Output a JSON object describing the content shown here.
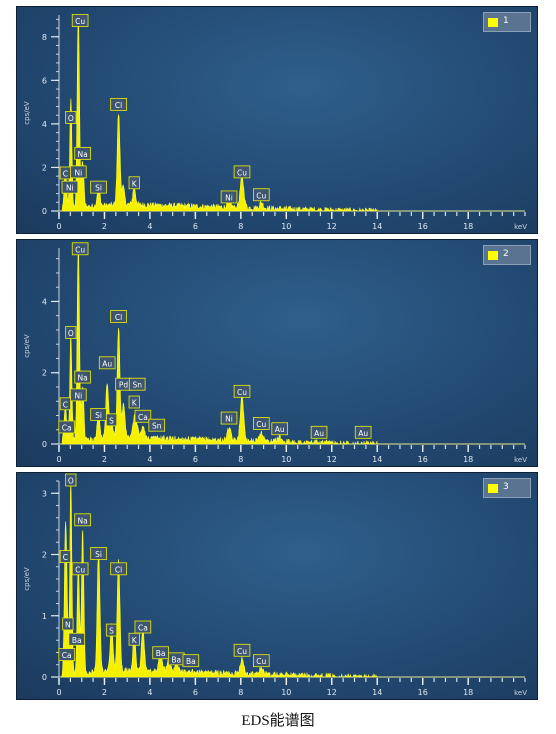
{
  "caption": "EDS能谱图",
  "chart_data": [
    {
      "type": "line",
      "legend": "1",
      "ylabel": "cps/eV",
      "xlabel": "keV",
      "xlim": [
        0,
        20.5
      ],
      "ylim": [
        0,
        9
      ],
      "xticks": [
        0,
        2,
        4,
        6,
        8,
        10,
        12,
        14,
        16,
        18
      ],
      "yticks": [
        0,
        2,
        4,
        6,
        8
      ],
      "peaks": [
        [
          0.28,
          1.7,
          0.05
        ],
        [
          0.52,
          5.1,
          0.045
        ],
        [
          0.85,
          9.0,
          0.05
        ],
        [
          1.04,
          2.1,
          0.05
        ],
        [
          1.74,
          0.95,
          0.06
        ],
        [
          2.62,
          4.2,
          0.06
        ],
        [
          2.82,
          0.8,
          0.06
        ],
        [
          3.31,
          0.8,
          0.06
        ],
        [
          7.48,
          0.35,
          0.07
        ],
        [
          8.05,
          1.4,
          0.08
        ],
        [
          8.9,
          0.25,
          0.08
        ]
      ],
      "labels": [
        {
          "text": "Cu",
          "x": 0.93,
          "y": 8.7
        },
        {
          "text": "O",
          "x": 0.52,
          "y": 4.25
        },
        {
          "text": "Na",
          "x": 1.04,
          "y": 2.6
        },
        {
          "text": "C",
          "x": 0.28,
          "y": 1.7
        },
        {
          "text": "Ni",
          "x": 0.85,
          "y": 1.75
        },
        {
          "text": "Ni",
          "x": 0.48,
          "y": 1.05
        },
        {
          "text": "Si",
          "x": 1.74,
          "y": 1.05
        },
        {
          "text": "Cl",
          "x": 2.62,
          "y": 4.85
        },
        {
          "text": "K",
          "x": 3.31,
          "y": 1.25
        },
        {
          "text": "Cu",
          "x": 8.05,
          "y": 1.75
        },
        {
          "text": "Ni",
          "x": 7.48,
          "y": 0.6
        },
        {
          "text": "Cu",
          "x": 8.9,
          "y": 0.7
        }
      ]
    },
    {
      "type": "line",
      "legend": "2",
      "ylabel": "cps/eV",
      "xlabel": "keV",
      "xlim": [
        0,
        20.5
      ],
      "ylim": [
        0,
        5.5
      ],
      "xticks": [
        0,
        2,
        4,
        6,
        8,
        10,
        12,
        14,
        16,
        18
      ],
      "yticks": [
        0,
        2,
        4
      ],
      "peaks": [
        [
          0.28,
          1.0,
          0.05
        ],
        [
          0.52,
          3.0,
          0.045
        ],
        [
          0.85,
          5.5,
          0.05
        ],
        [
          1.04,
          1.5,
          0.05
        ],
        [
          1.74,
          0.75,
          0.06
        ],
        [
          2.12,
          1.6,
          0.06
        ],
        [
          2.31,
          0.45,
          0.06
        ],
        [
          2.62,
          3.1,
          0.06
        ],
        [
          2.84,
          0.95,
          0.06
        ],
        [
          3.31,
          0.55,
          0.06
        ],
        [
          3.69,
          0.35,
          0.06
        ],
        [
          3.44,
          0.3,
          0.06
        ],
        [
          7.48,
          0.35,
          0.07
        ],
        [
          8.05,
          1.2,
          0.08
        ],
        [
          8.9,
          0.25,
          0.08
        ],
        [
          9.71,
          0.15,
          0.08
        ]
      ],
      "labels": [
        {
          "text": "Cu",
          "x": 0.93,
          "y": 5.45
        },
        {
          "text": "O",
          "x": 0.52,
          "y": 3.1
        },
        {
          "text": "Cl",
          "x": 2.62,
          "y": 3.55
        },
        {
          "text": "Au",
          "x": 2.12,
          "y": 2.25
        },
        {
          "text": "Na",
          "x": 1.04,
          "y": 1.85
        },
        {
          "text": "Pd",
          "x": 2.84,
          "y": 1.65
        },
        {
          "text": "Sn",
          "x": 3.44,
          "y": 1.65
        },
        {
          "text": "Ni",
          "x": 0.85,
          "y": 1.35
        },
        {
          "text": "C",
          "x": 0.28,
          "y": 1.1
        },
        {
          "text": "K",
          "x": 3.31,
          "y": 1.15
        },
        {
          "text": "Si",
          "x": 1.74,
          "y": 0.8
        },
        {
          "text": "S",
          "x": 2.31,
          "y": 0.65
        },
        {
          "text": "Ca",
          "x": 3.69,
          "y": 0.75
        },
        {
          "text": "Ca",
          "x": 0.34,
          "y": 0.45
        },
        {
          "text": "Sn",
          "x": 4.3,
          "y": 0.5
        },
        {
          "text": "Cu",
          "x": 8.05,
          "y": 1.45
        },
        {
          "text": "Ni",
          "x": 7.48,
          "y": 0.7
        },
        {
          "text": "Cu",
          "x": 8.9,
          "y": 0.55
        },
        {
          "text": "Au",
          "x": 9.71,
          "y": 0.4
        },
        {
          "text": "Au",
          "x": 11.44,
          "y": 0.3
        },
        {
          "text": "Au",
          "x": 13.38,
          "y": 0.3
        }
      ]
    },
    {
      "type": "line",
      "legend": "3",
      "ylabel": "cps/eV",
      "xlabel": "keV",
      "xlim": [
        0,
        20.5
      ],
      "ylim": [
        0,
        3.2
      ],
      "xticks": [
        0,
        2,
        4,
        6,
        8,
        10,
        12,
        14,
        16,
        18
      ],
      "yticks": [
        0,
        1,
        2,
        3
      ],
      "peaks": [
        [
          0.28,
          2.0,
          0.05
        ],
        [
          0.34,
          0.9,
          0.05
        ],
        [
          0.52,
          3.2,
          0.045
        ],
        [
          0.85,
          1.75,
          0.05
        ],
        [
          1.04,
          2.35,
          0.05
        ],
        [
          1.74,
          1.95,
          0.06
        ],
        [
          2.31,
          0.75,
          0.06
        ],
        [
          2.62,
          1.8,
          0.06
        ],
        [
          3.31,
          0.55,
          0.06
        ],
        [
          3.69,
          0.75,
          0.06
        ],
        [
          4.47,
          0.35,
          0.07
        ],
        [
          4.83,
          0.25,
          0.07
        ],
        [
          5.16,
          0.18,
          0.07
        ],
        [
          8.05,
          0.25,
          0.08
        ],
        [
          8.9,
          0.1,
          0.08
        ]
      ],
      "labels": [
        {
          "text": "O",
          "x": 0.52,
          "y": 3.2
        },
        {
          "text": "Na",
          "x": 1.04,
          "y": 2.55
        },
        {
          "text": "C",
          "x": 0.28,
          "y": 1.95
        },
        {
          "text": "Si",
          "x": 1.74,
          "y": 2.0
        },
        {
          "text": "Cu",
          "x": 0.93,
          "y": 1.75
        },
        {
          "text": "Cl",
          "x": 2.62,
          "y": 1.75
        },
        {
          "text": "N",
          "x": 0.39,
          "y": 0.85
        },
        {
          "text": "S",
          "x": 2.31,
          "y": 0.75
        },
        {
          "text": "Ca",
          "x": 3.69,
          "y": 0.8
        },
        {
          "text": "Ba",
          "x": 0.78,
          "y": 0.6
        },
        {
          "text": "K",
          "x": 3.31,
          "y": 0.6
        },
        {
          "text": "Ca",
          "x": 0.34,
          "y": 0.35
        },
        {
          "text": "Ba",
          "x": 4.47,
          "y": 0.38
        },
        {
          "text": "Ba",
          "x": 5.16,
          "y": 0.28
        },
        {
          "text": "Ba",
          "x": 5.8,
          "y": 0.25
        },
        {
          "text": "Cu",
          "x": 8.05,
          "y": 0.42
        },
        {
          "text": "Cu",
          "x": 8.9,
          "y": 0.25
        }
      ]
    }
  ]
}
